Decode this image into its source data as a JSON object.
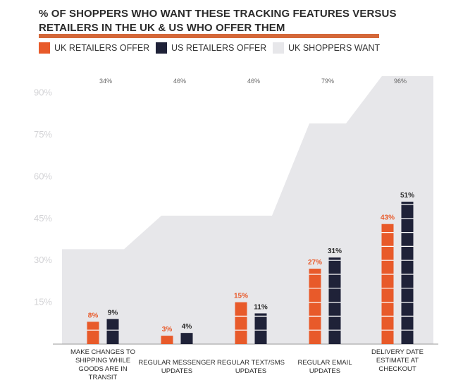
{
  "title_line1": "% OF SHOPPERS WHO WANT THESE TRACKING FEATURES VERSUS",
  "title_line2": "RETAILERS IN THE UK & US WHO OFFER THEM",
  "colors": {
    "uk_retailers": "#e85a2a",
    "us_retailers": "#1f2238",
    "uk_shoppers": "#e7e7ea",
    "accent_rule": "#d4683a"
  },
  "chart_data": {
    "type": "bar",
    "title": "% OF SHOPPERS WHO WANT THESE TRACKING FEATURES VERSUS RETAILERS IN THE UK & US WHO OFFER THEM",
    "categories": [
      "MAKE CHANGES TO SHIPPING WHILE GOODS ARE IN TRANSIT",
      "REGULAR MESSENGER UPDATES",
      "REGULAR TEXT/SMS UPDATES",
      "REGULAR EMAIL UPDATES",
      "DELIVERY DATE ESTIMATE AT CHECKOUT"
    ],
    "category_lines": [
      [
        "MAKE CHANGES TO",
        "SHIPPING WHILE",
        "GOODS ARE IN",
        "TRANSIT"
      ],
      [
        "REGULAR MESSENGER",
        "UPDATES"
      ],
      [
        "REGULAR TEXT/SMS",
        "UPDATES"
      ],
      [
        "REGULAR EMAIL",
        "UPDATES"
      ],
      [
        "DELIVERY DATE",
        "ESTIMATE AT",
        "CHECKOUT"
      ]
    ],
    "series": [
      {
        "name": "UK RETAILERS OFFER",
        "type": "bar",
        "values": [
          8,
          3,
          15,
          27,
          43
        ],
        "labels": [
          "8%",
          "3%",
          "15%",
          "27%",
          "43%"
        ]
      },
      {
        "name": "US RETAILERS OFFER",
        "type": "bar",
        "values": [
          9,
          4,
          11,
          31,
          51
        ],
        "labels": [
          "9%",
          "4%",
          "11%",
          "31%",
          "51%"
        ]
      },
      {
        "name": "UK SHOPPERS WANT",
        "type": "area",
        "values": [
          34,
          46,
          46,
          79,
          96
        ],
        "labels": [
          "34%",
          "46%",
          "46%",
          "79%",
          "96%"
        ]
      }
    ],
    "yticks": [
      15,
      30,
      45,
      60,
      75,
      90
    ],
    "ytick_labels": [
      "15%",
      "30%",
      "45%",
      "60%",
      "75%",
      "90%"
    ],
    "ylim": [
      0,
      100
    ],
    "legend_position": "top",
    "grid": false
  }
}
